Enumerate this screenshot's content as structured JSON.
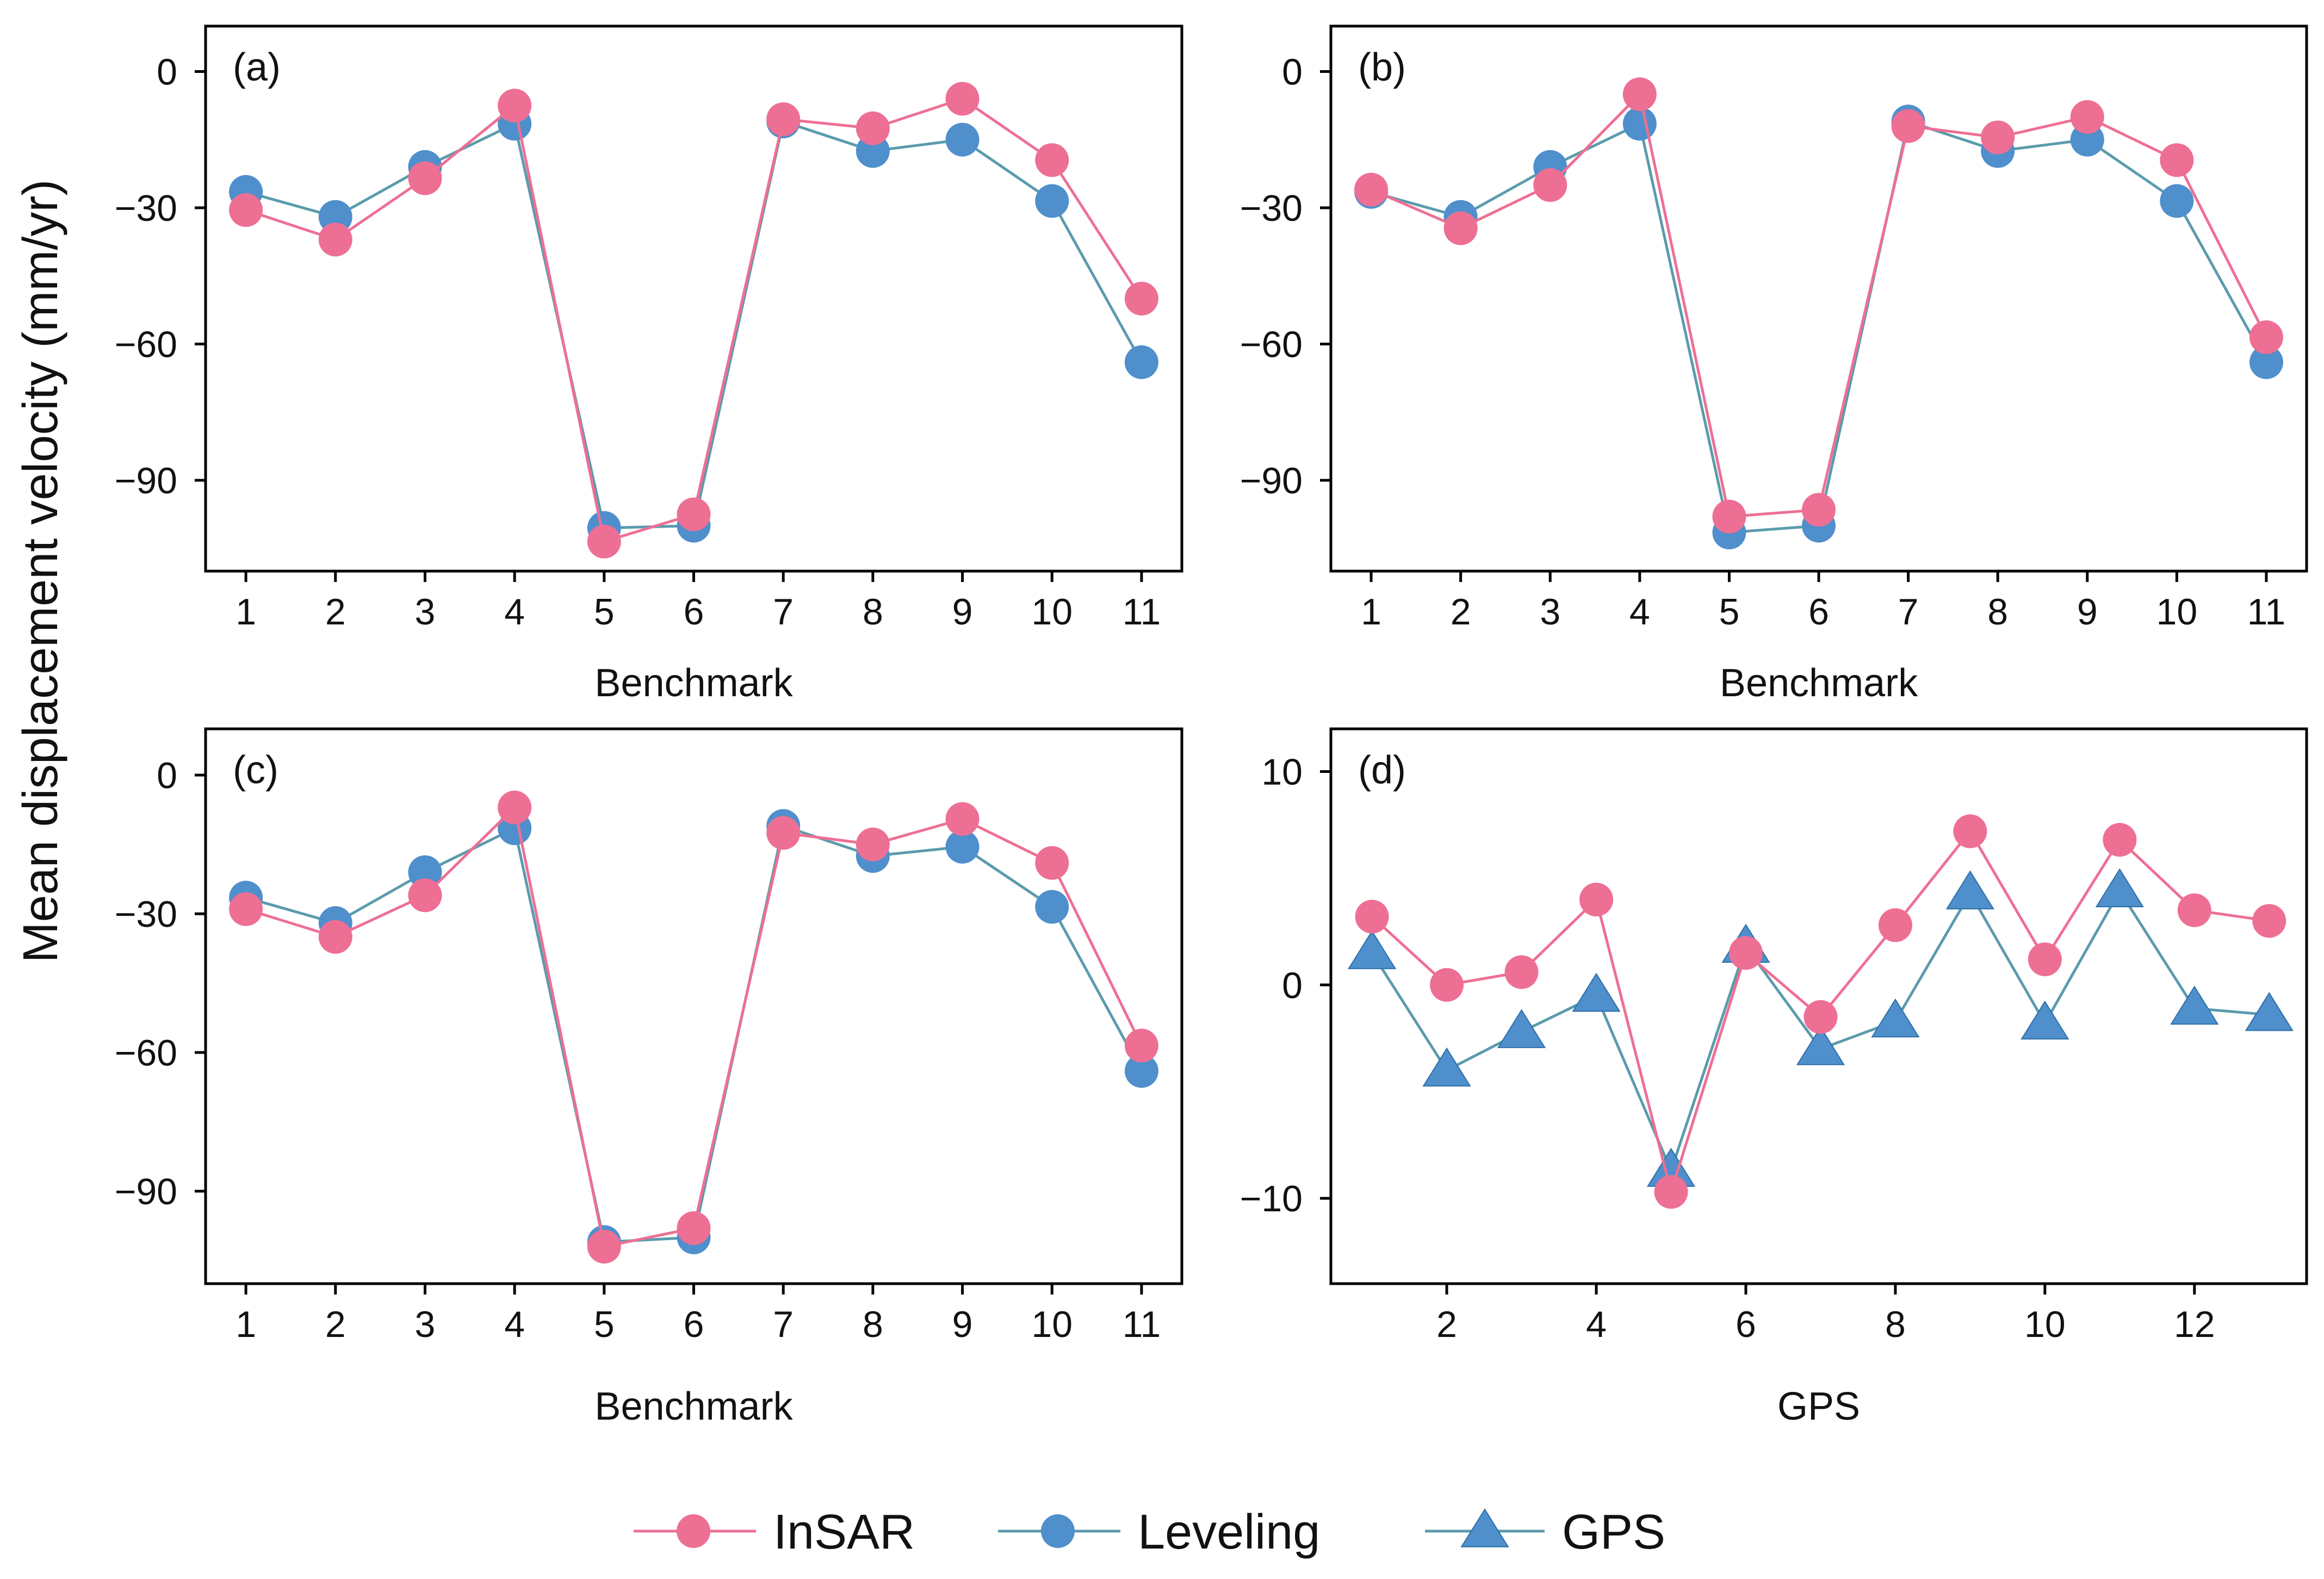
{
  "figure": {
    "y_axis_title": "Mean displacement velocity (mm/yr)"
  },
  "series_styles": {
    "InSAR": {
      "color": "#EE6F94",
      "marker": "circle"
    },
    "Leveling": {
      "color": "#4F8FCC",
      "line_color": "#5B9BAD",
      "marker": "circle"
    },
    "GPS": {
      "color": "#4F8FCC",
      "line_color": "#5B9BAD",
      "marker": "triangle"
    }
  },
  "legend": {
    "items": [
      {
        "label": "InSAR",
        "series": "InSAR"
      },
      {
        "label": "Leveling",
        "series": "Leveling"
      },
      {
        "label": "GPS",
        "series": "GPS"
      }
    ]
  },
  "chart_data": [
    {
      "panel": "(a)",
      "type": "line",
      "xlabel": "Benchmark",
      "ylabel": "Mean displacement velocity (mm/yr)",
      "x": [
        1,
        2,
        3,
        4,
        5,
        6,
        7,
        8,
        9,
        10,
        11
      ],
      "xticks": [
        1,
        2,
        3,
        4,
        5,
        6,
        7,
        8,
        9,
        10,
        11
      ],
      "yticks": [
        0,
        -30,
        -60,
        -90
      ],
      "xlim": [
        0.55,
        11.45
      ],
      "ylim": [
        -110,
        10
      ],
      "series": [
        {
          "name": "Leveling",
          "values": [
            -26.5,
            -32,
            -21,
            -11.5,
            -100.5,
            -100,
            -11,
            -17.5,
            -15,
            -28.5,
            -64
          ]
        },
        {
          "name": "InSAR",
          "values": [
            -30.5,
            -37,
            -23.5,
            -7.5,
            -103.5,
            -97.5,
            -10.5,
            -12.5,
            -6,
            -19.5,
            -50
          ]
        }
      ]
    },
    {
      "panel": "(b)",
      "type": "line",
      "xlabel": "Benchmark",
      "ylabel": "Mean displacement velocity (mm/yr)",
      "x": [
        1,
        2,
        3,
        4,
        5,
        6,
        7,
        8,
        9,
        10,
        11
      ],
      "xticks": [
        1,
        2,
        3,
        4,
        5,
        6,
        7,
        8,
        9,
        10,
        11
      ],
      "yticks": [
        0,
        -30,
        -60,
        -90
      ],
      "xlim": [
        0.55,
        11.45
      ],
      "ylim": [
        -110,
        10
      ],
      "series": [
        {
          "name": "Leveling",
          "values": [
            -26.5,
            -32,
            -21,
            -11.5,
            -101.5,
            -100,
            -11,
            -17.5,
            -15,
            -28.5,
            -64
          ]
        },
        {
          "name": "InSAR",
          "values": [
            -26,
            -34.5,
            -25,
            -5,
            -98,
            -96.5,
            -12,
            -14.5,
            -10,
            -19.5,
            -58.5
          ]
        }
      ]
    },
    {
      "panel": "(c)",
      "type": "line",
      "xlabel": "Benchmark",
      "ylabel": "Mean displacement velocity (mm/yr)",
      "x": [
        1,
        2,
        3,
        4,
        5,
        6,
        7,
        8,
        9,
        10,
        11
      ],
      "xticks": [
        1,
        2,
        3,
        4,
        5,
        6,
        7,
        8,
        9,
        10,
        11
      ],
      "yticks": [
        0,
        -30,
        -60,
        -90
      ],
      "xlim": [
        0.55,
        11.45
      ],
      "ylim": [
        -110,
        10
      ],
      "series": [
        {
          "name": "Leveling",
          "values": [
            -26.5,
            -32,
            -21,
            -11.5,
            -101,
            -100,
            -11,
            -17.5,
            -15.5,
            -28.5,
            -64
          ]
        },
        {
          "name": "InSAR",
          "values": [
            -29,
            -35,
            -26,
            -7,
            -102,
            -98,
            -12.5,
            -15,
            -9.5,
            -19,
            -58.5
          ]
        }
      ]
    },
    {
      "panel": "(d)",
      "type": "line",
      "xlabel": "GPS",
      "ylabel": "Mean displacement velocity (mm/yr)",
      "x": [
        1,
        2,
        3,
        4,
        5,
        6,
        7,
        8,
        9,
        10,
        11,
        12,
        13
      ],
      "xticks": [
        2,
        4,
        6,
        8,
        10,
        12
      ],
      "yticks": [
        10,
        0,
        -10
      ],
      "xlim": [
        0.45,
        13.5
      ],
      "ylim": [
        -14,
        12
      ],
      "series": [
        {
          "name": "GPS",
          "values": [
            1.5,
            -4,
            -2.2,
            -0.5,
            -8.7,
            1.8,
            -3,
            -1.7,
            4.3,
            -1.8,
            4.4,
            -1.1,
            -1.4
          ]
        },
        {
          "name": "InSAR",
          "values": [
            3.2,
            0,
            0.6,
            4,
            -9.7,
            1.5,
            -1.5,
            2.8,
            7.2,
            1.2,
            6.8,
            3.5,
            3
          ]
        }
      ]
    }
  ]
}
